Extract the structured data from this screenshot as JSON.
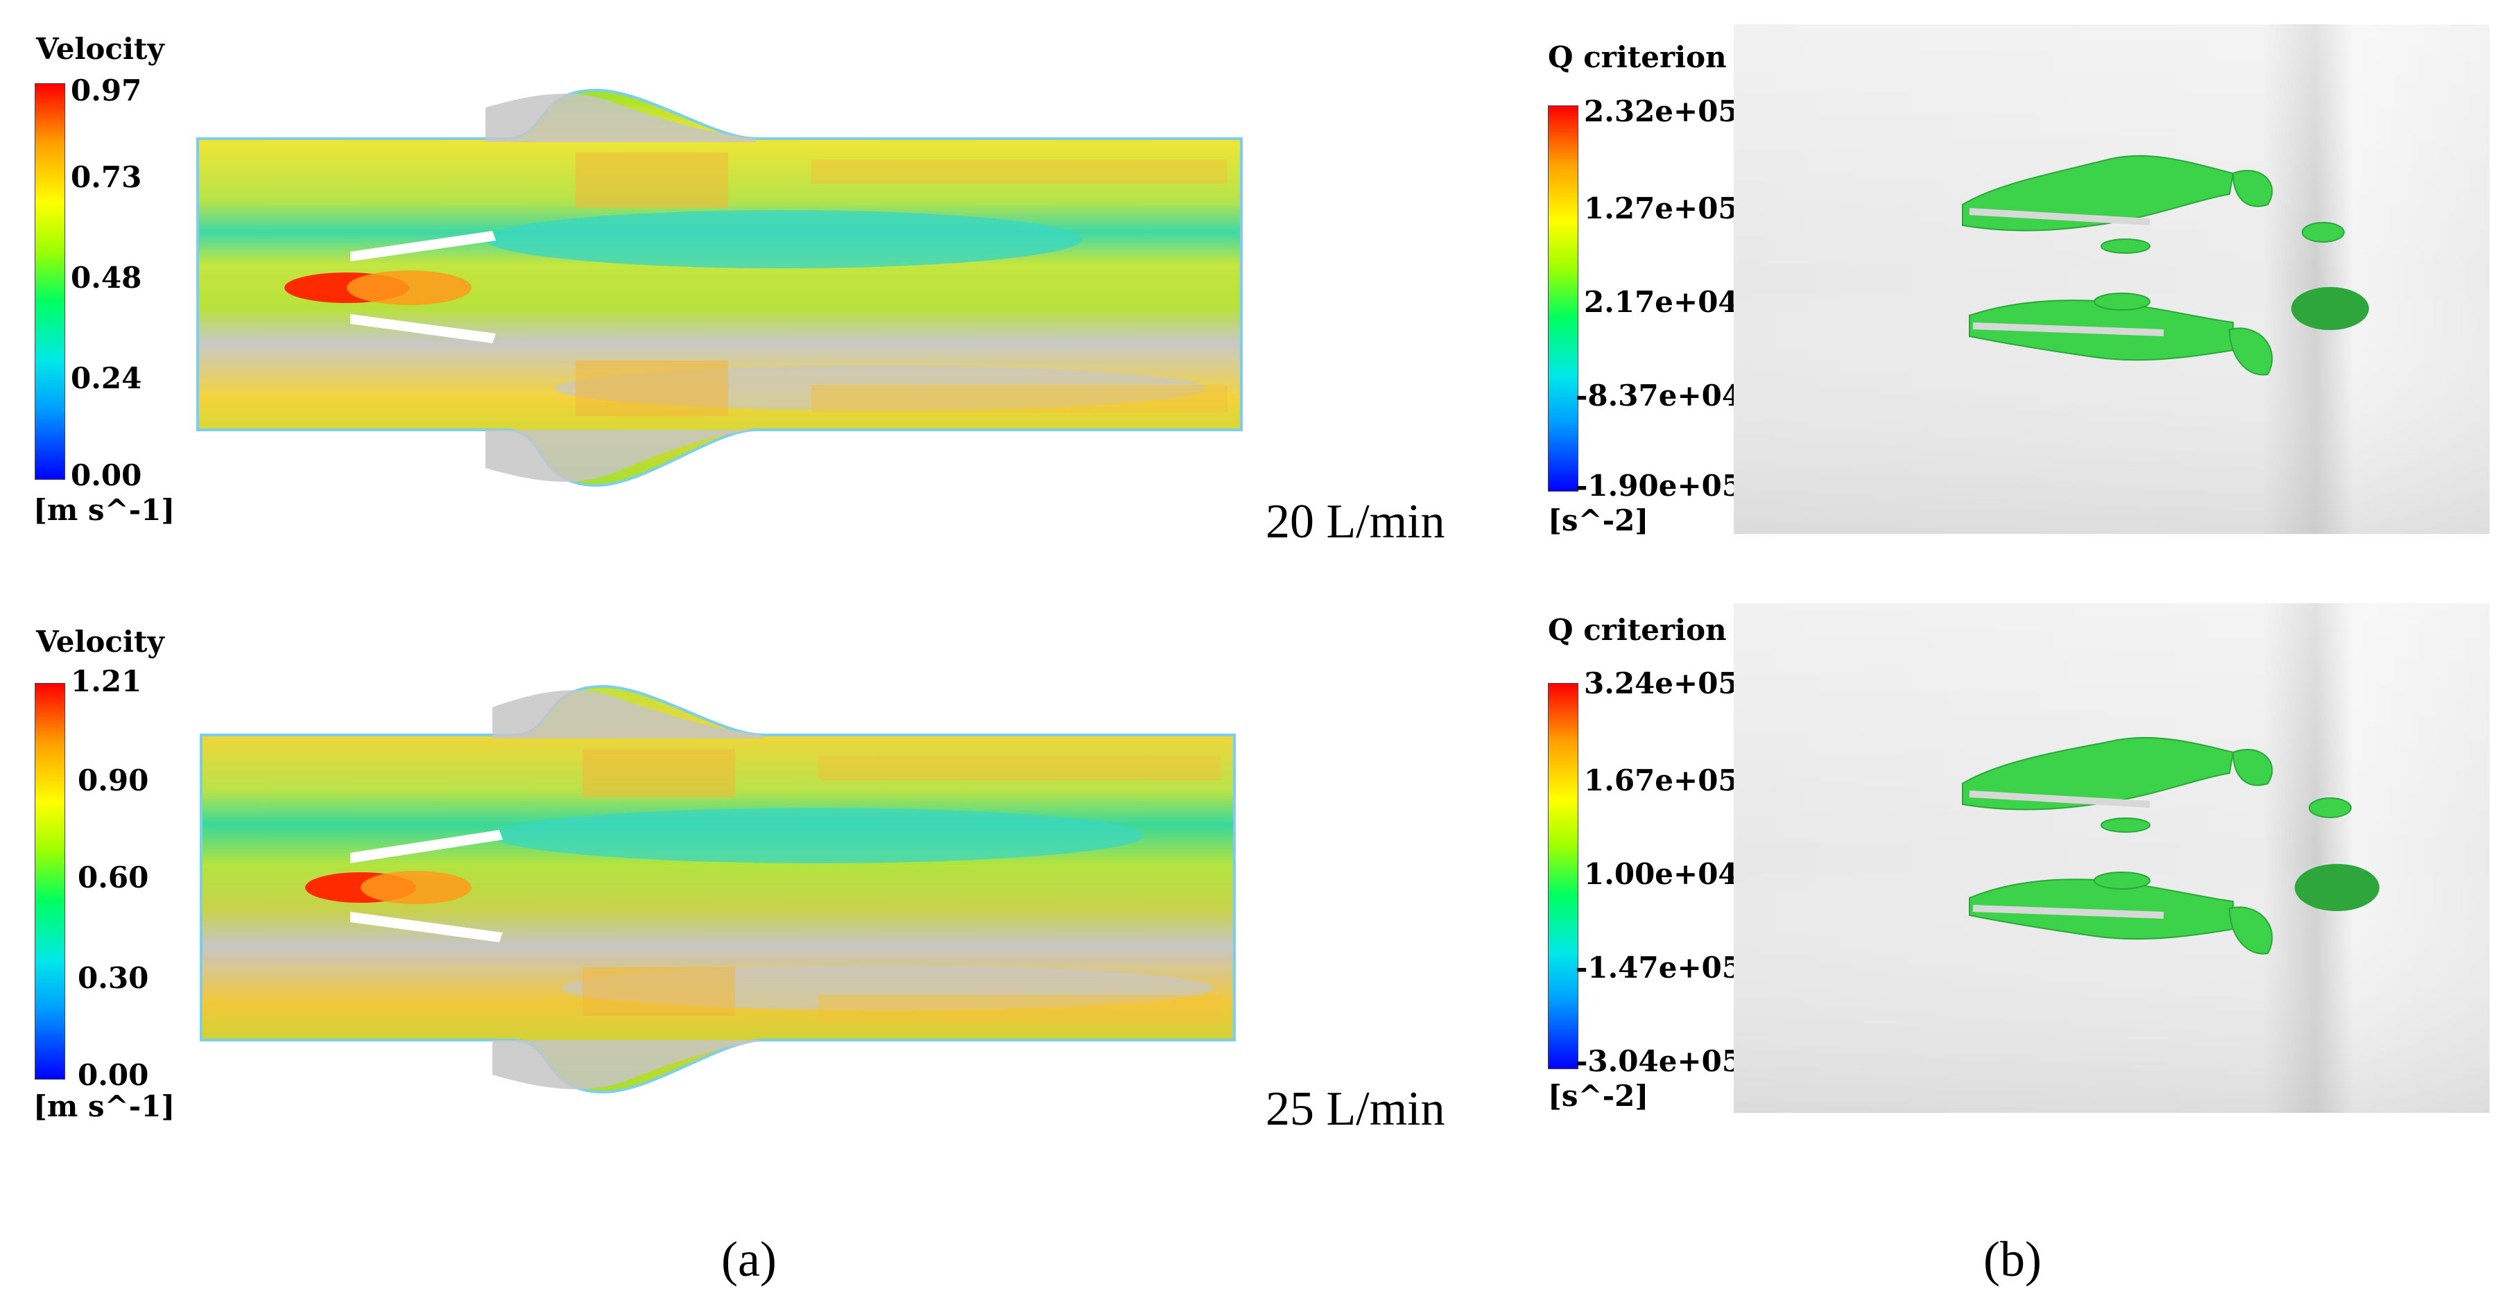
{
  "panel_a": {
    "top": {
      "colorbar_title": "Velocity",
      "ticks": [
        "0.97",
        "0.73",
        "0.48",
        "0.24",
        "0.00"
      ],
      "unit": "[m s^-1]",
      "flow_label": "20 L/min"
    },
    "bottom": {
      "colorbar_title": "Velocity",
      "ticks": [
        "1.21",
        "0.90",
        "0.60",
        "0.30",
        "0.00"
      ],
      "unit": "[m s^-1]",
      "flow_label": "25 L/min"
    },
    "label": "(a)"
  },
  "panel_b": {
    "top": {
      "colorbar_title": "Q criterion",
      "ticks": [
        "2.32e+05",
        "1.27e+05",
        "2.17e+04",
        "-8.37e+04",
        "-1.90e+05"
      ],
      "unit": "[s^-2]"
    },
    "bottom": {
      "colorbar_title": "Q criterion",
      "ticks": [
        "3.24e+05",
        "1.67e+05",
        "1.00e+04",
        "-1.47e+05",
        "-3.04e+05"
      ],
      "unit": "[s^-2]"
    },
    "label": "(b)"
  },
  "colors": {
    "colormap": [
      "#0000ff",
      "#00a0ff",
      "#00e8e8",
      "#00ff60",
      "#a0ff00",
      "#ffff00",
      "#ffa000",
      "#ff0000"
    ],
    "vortex_green": "#3cd24a",
    "background_gray": "#e6e6e6"
  }
}
